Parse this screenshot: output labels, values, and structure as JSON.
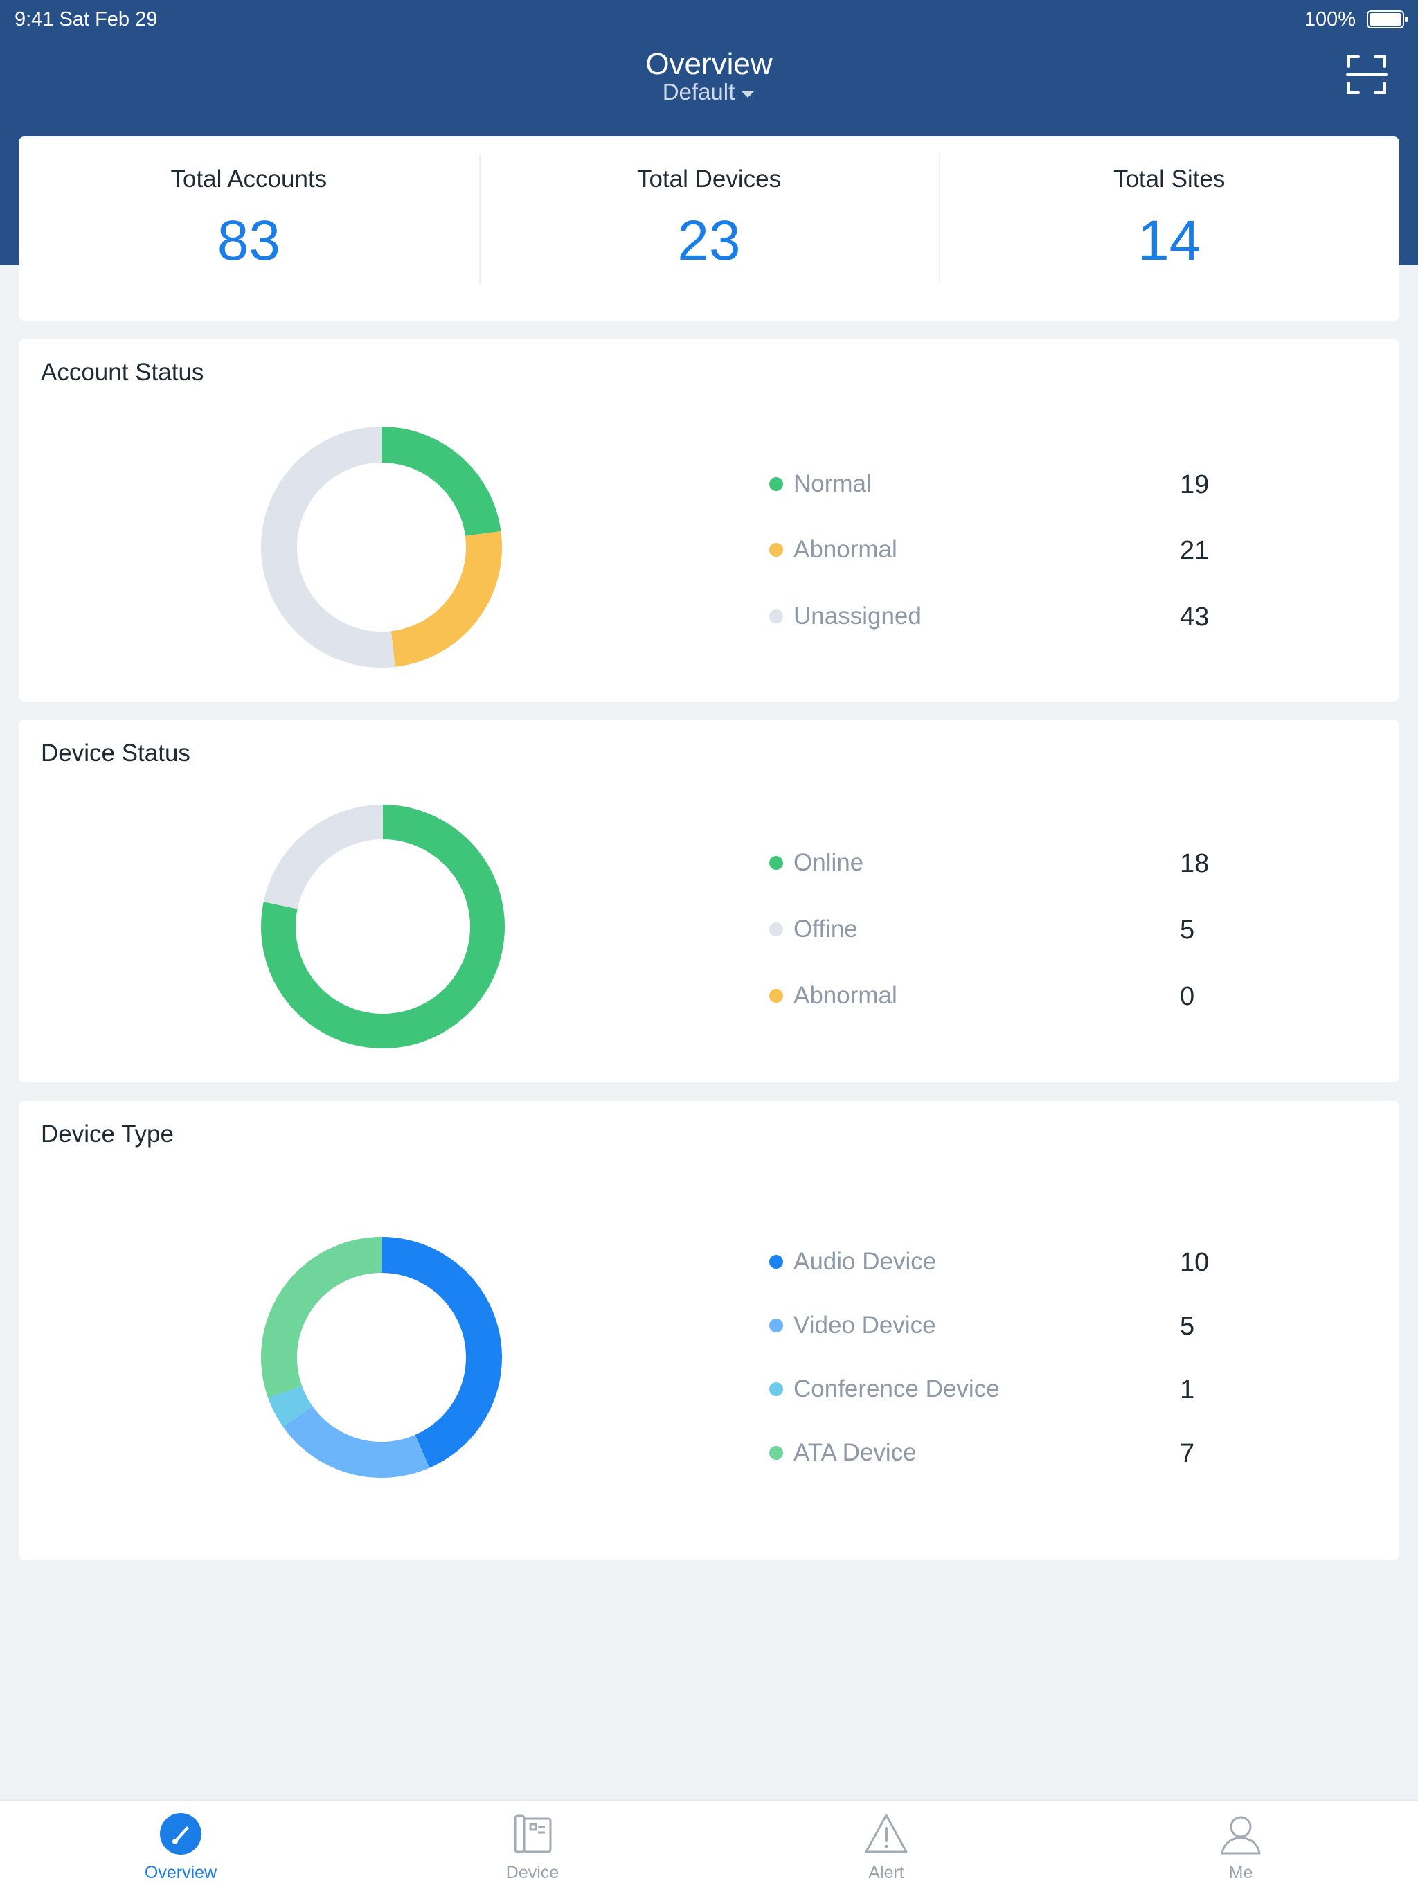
{
  "status_bar": {
    "time": "9:41  Sat Feb 29",
    "battery": "100%"
  },
  "header": {
    "title": "Overview",
    "subtitle": "Default"
  },
  "summary": [
    {
      "label": "Total Accounts",
      "value": "83"
    },
    {
      "label": "Total Devices",
      "value": "23"
    },
    {
      "label": "Total Sites",
      "value": "14"
    }
  ],
  "account_status": {
    "title": "Account Status",
    "items": [
      {
        "label": "Normal",
        "value": "19",
        "color": "#3fc57a"
      },
      {
        "label": "Abnormal",
        "value": "21",
        "color": "#f8c152"
      },
      {
        "label": "Unassigned",
        "value": "43",
        "color": "#dfe4ec"
      }
    ]
  },
  "device_status": {
    "title": "Device Status",
    "items": [
      {
        "label": "Online",
        "value": "18",
        "color": "#3fc57a"
      },
      {
        "label": "Offine",
        "value": "5",
        "color": "#dfe4ec"
      },
      {
        "label": "Abnormal",
        "value": "0",
        "color": "#f8c152"
      }
    ]
  },
  "device_type": {
    "title": "Device Type",
    "items": [
      {
        "label": "Audio Device",
        "value": "10",
        "color": "#1b82f3"
      },
      {
        "label": "Video Device",
        "value": "5",
        "color": "#6cb5fa"
      },
      {
        "label": "Conference Device",
        "value": "1",
        "color": "#6ccbeb"
      },
      {
        "label": "ATA Device",
        "value": "7",
        "color": "#6fd59a"
      }
    ]
  },
  "tabs": [
    {
      "label": "Overview",
      "icon": "speedometer-icon",
      "active": true
    },
    {
      "label": "Device",
      "icon": "phone-device-icon",
      "active": false
    },
    {
      "label": "Alert",
      "icon": "alert-triangle-icon",
      "active": false
    },
    {
      "label": "Me",
      "icon": "person-icon",
      "active": false
    }
  ],
  "colors": {
    "header": "#265087",
    "accent": "#1a7ee6",
    "background": "#eff3f6"
  }
}
